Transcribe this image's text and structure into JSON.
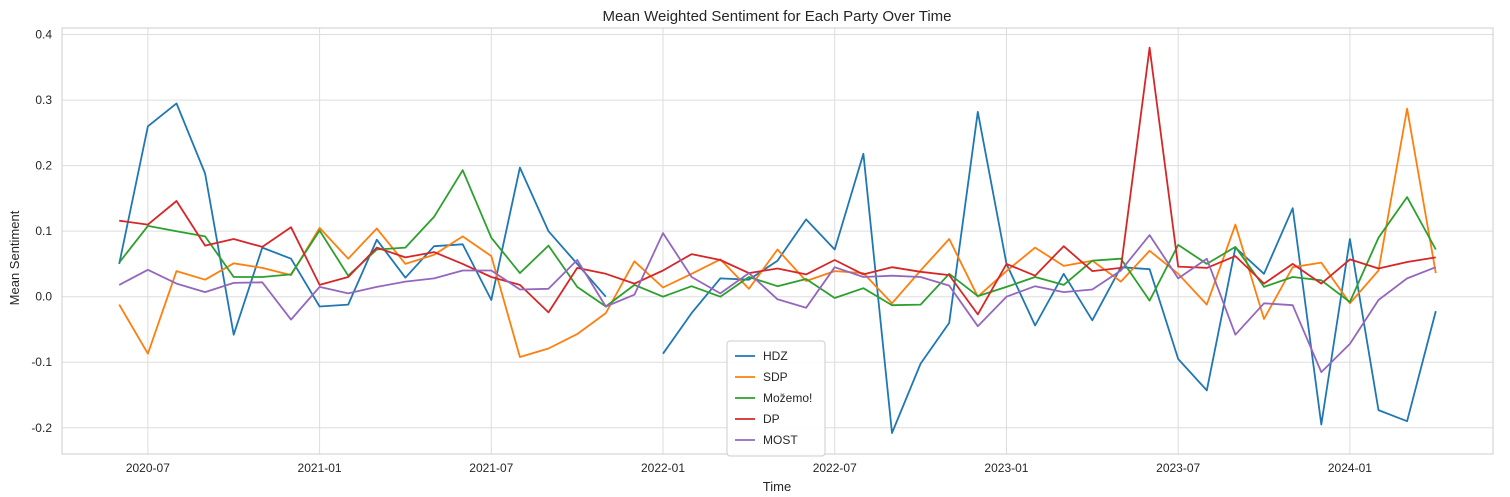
{
  "chart_data": {
    "type": "line",
    "title": "Mean Weighted Sentiment for Each Party Over Time",
    "xlabel": "Time",
    "ylabel": "Mean Sentiment",
    "x_ticks": [
      "2020-07",
      "2021-01",
      "2021-07",
      "2022-01",
      "2022-07",
      "2023-01",
      "2023-07",
      "2024-01"
    ],
    "y_ticks": [
      -0.2,
      -0.1,
      0.0,
      0.1,
      0.2,
      0.3,
      0.4
    ],
    "ylim": [
      -0.24,
      0.41
    ],
    "xlim": [
      "2020-04",
      "2024-06"
    ],
    "grid": true,
    "legend_position": "bottom-center",
    "x": [
      "2020-06",
      "2020-07",
      "2020-08",
      "2020-09",
      "2020-10",
      "2020-11",
      "2020-12",
      "2021-01",
      "2021-02",
      "2021-03",
      "2021-04",
      "2021-05",
      "2021-06",
      "2021-07",
      "2021-08",
      "2021-09",
      "2021-10",
      "2021-11",
      "2021-12",
      "2022-01",
      "2022-02",
      "2022-03",
      "2022-04",
      "2022-05",
      "2022-06",
      "2022-07",
      "2022-08",
      "2022-09",
      "2022-10",
      "2022-11",
      "2022-12",
      "2023-01",
      "2023-02",
      "2023-03",
      "2023-04",
      "2023-05",
      "2023-06",
      "2023-07",
      "2023-08",
      "2023-09",
      "2023-10",
      "2023-11",
      "2023-12",
      "2024-01",
      "2024-02",
      "2024-03",
      "2024-04"
    ],
    "series": [
      {
        "name": "HDZ",
        "color": "#1f77b4",
        "values": [
          0.05,
          0.26,
          0.295,
          0.188,
          -0.058,
          0.075,
          0.058,
          -0.015,
          -0.012,
          0.087,
          0.029,
          0.077,
          0.08,
          -0.005,
          0.197,
          0.1,
          0.05,
          0.0,
          null,
          -0.087,
          -0.025,
          0.028,
          0.026,
          0.055,
          0.118,
          0.072,
          0.218,
          -0.208,
          -0.102,
          -0.04,
          0.282,
          0.05,
          -0.044,
          0.035,
          -0.036,
          0.045,
          0.042,
          -0.095,
          -0.143,
          0.075,
          0.035,
          0.135,
          -0.195,
          0.088,
          -0.173,
          -0.19,
          -0.022
        ]
      },
      {
        "name": "SDP",
        "color": "#ff7f0e",
        "values": [
          -0.012,
          -0.087,
          0.039,
          0.026,
          0.051,
          0.044,
          0.033,
          0.105,
          0.058,
          0.104,
          0.05,
          0.064,
          0.092,
          0.062,
          -0.092,
          -0.079,
          -0.057,
          -0.025,
          0.054,
          0.014,
          0.035,
          0.057,
          0.012,
          0.072,
          0.024,
          0.039,
          0.036,
          -0.01,
          0.04,
          0.088,
          0.0,
          0.039,
          0.075,
          0.047,
          0.055,
          0.023,
          0.07,
          0.035,
          -0.012,
          0.11,
          -0.034,
          0.045,
          0.052,
          -0.01,
          0.04,
          0.287,
          0.036
        ]
      },
      {
        "name": "Možemo!",
        "color": "#2ca02c",
        "values": [
          0.052,
          0.108,
          0.1,
          0.092,
          0.03,
          0.03,
          0.034,
          0.101,
          0.032,
          0.072,
          0.075,
          0.122,
          0.193,
          0.09,
          0.036,
          0.078,
          0.015,
          -0.015,
          0.018,
          0.0,
          0.016,
          0.0,
          0.03,
          0.016,
          0.027,
          -0.002,
          0.013,
          -0.013,
          -0.012,
          0.035,
          0.001,
          0.015,
          0.03,
          0.018,
          0.055,
          0.058,
          -0.006,
          0.079,
          0.05,
          0.076,
          0.015,
          0.03,
          0.025,
          -0.008,
          0.09,
          0.152,
          0.072
        ]
      },
      {
        "name": "DP",
        "color": "#d62728",
        "values": [
          0.116,
          0.11,
          0.146,
          0.078,
          0.088,
          0.076,
          0.106,
          0.018,
          0.03,
          0.075,
          0.06,
          0.068,
          0.05,
          0.03,
          0.018,
          -0.024,
          0.044,
          0.035,
          0.02,
          0.04,
          0.065,
          0.056,
          0.036,
          0.043,
          0.034,
          0.056,
          0.034,
          0.045,
          0.038,
          0.033,
          -0.027,
          0.05,
          0.032,
          0.077,
          0.039,
          0.044,
          0.38,
          0.046,
          0.044,
          0.062,
          0.02,
          0.05,
          0.02,
          0.057,
          0.043,
          0.053,
          0.06
        ]
      },
      {
        "name": "MOST",
        "color": "#9467bd",
        "values": [
          0.018,
          0.041,
          0.02,
          0.007,
          0.021,
          0.022,
          -0.035,
          0.015,
          0.005,
          0.015,
          0.023,
          0.028,
          0.04,
          0.04,
          0.011,
          0.012,
          0.056,
          -0.015,
          0.003,
          0.097,
          0.03,
          0.005,
          0.036,
          -0.004,
          -0.017,
          0.045,
          0.03,
          0.032,
          0.03,
          0.017,
          -0.045,
          0.0,
          0.016,
          0.007,
          0.011,
          0.04,
          0.094,
          0.028,
          0.058,
          -0.058,
          -0.01,
          -0.013,
          -0.115,
          -0.072,
          -0.005,
          0.028,
          0.045
        ]
      }
    ]
  }
}
